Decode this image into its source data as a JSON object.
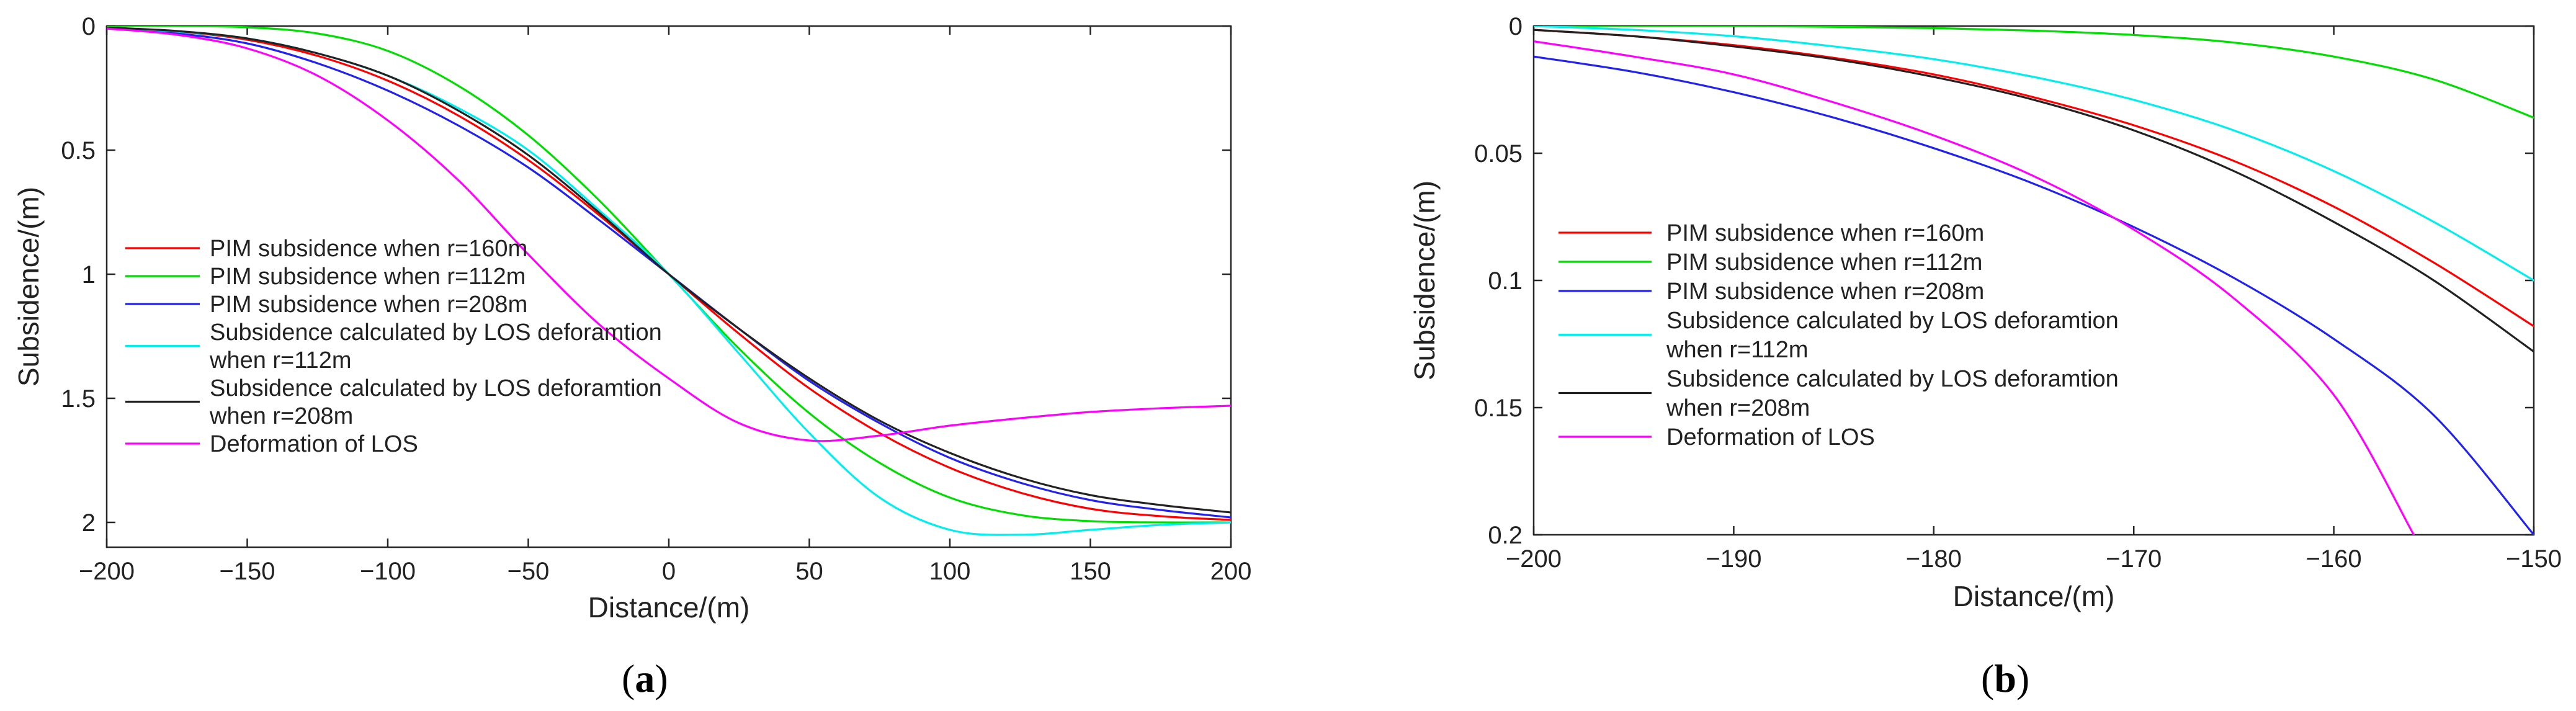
{
  "chart_data": [
    {
      "type": "line",
      "panel": "a",
      "panel_label": [
        "(",
        "a",
        ")"
      ],
      "xlabel": "Distance/(m)",
      "ylabel": "Subsidence/(m)",
      "xlim": [
        -200,
        200
      ],
      "ylim": [
        0,
        2.1
      ],
      "y_inverted": true,
      "xticks": [
        -200,
        -150,
        -100,
        -50,
        0,
        50,
        100,
        150,
        200
      ],
      "xtick_labels": [
        "−200",
        "−150",
        "−100",
        "−50",
        "0",
        "50",
        "100",
        "150",
        "200"
      ],
      "yticks": [
        0,
        0.5,
        1,
        1.5,
        2
      ],
      "ytick_labels": [
        "0",
        "0.5",
        "1",
        "1.5",
        "2"
      ],
      "legend_position": "middle-left",
      "series": [
        {
          "name": "PIM subsidence when r=160m",
          "legend_lines": [
            "PIM subsidence when r=160m"
          ],
          "color": "#ff0000",
          "x": [
            -200,
            -175,
            -150,
            -125,
            -100,
            -75,
            -50,
            -25,
            0,
            25,
            50,
            75,
            100,
            125,
            150,
            175,
            200
          ],
          "y": [
            0.006,
            0.022,
            0.055,
            0.12,
            0.22,
            0.36,
            0.54,
            0.76,
            1.0,
            1.24,
            1.46,
            1.64,
            1.78,
            1.88,
            1.945,
            1.975,
            1.99
          ]
        },
        {
          "name": "PIM subsidence when r=112m",
          "legend_lines": [
            "PIM subsidence when r=112m"
          ],
          "color": "#00dd00",
          "x": [
            -200,
            -175,
            -150,
            -125,
            -100,
            -75,
            -50,
            -25,
            0,
            25,
            50,
            75,
            100,
            125,
            150,
            175,
            200
          ],
          "y": [
            0.0,
            0.0,
            0.005,
            0.03,
            0.1,
            0.24,
            0.44,
            0.7,
            1.0,
            1.3,
            1.56,
            1.76,
            1.9,
            1.97,
            1.995,
            2.0,
            2.0
          ]
        },
        {
          "name": "PIM subsidence when r=208m",
          "legend_lines": [
            "PIM subsidence when r=208m"
          ],
          "color": "#2222ee",
          "x": [
            -200,
            -175,
            -150,
            -125,
            -100,
            -75,
            -50,
            -25,
            0,
            25,
            50,
            75,
            100,
            125,
            150,
            175,
            200
          ],
          "y": [
            0.01,
            0.03,
            0.07,
            0.15,
            0.26,
            0.4,
            0.57,
            0.78,
            1.0,
            1.22,
            1.43,
            1.6,
            1.74,
            1.84,
            1.91,
            1.95,
            1.98
          ]
        },
        {
          "name": "Subsidence calculated by LOS deforamtion when r=112m",
          "legend_lines": [
            "Subsidence calculated by LOS deforamtion",
            "when r=112m"
          ],
          "color": "#00eeee",
          "x": [
            -200,
            -175,
            -150,
            -125,
            -100,
            -75,
            -50,
            -25,
            0,
            25,
            50,
            75,
            100,
            125,
            150,
            175,
            200
          ],
          "y": [
            0.006,
            0.022,
            0.05,
            0.11,
            0.2,
            0.33,
            0.5,
            0.74,
            1.0,
            1.32,
            1.64,
            1.9,
            2.03,
            2.05,
            2.03,
            2.01,
            2.0
          ]
        },
        {
          "name": "Subsidence calculated by LOS deforamtion when r=208m",
          "legend_lines": [
            "Subsidence calculated by LOS deforamtion",
            "when r=208m"
          ],
          "color": "#222222",
          "x": [
            -200,
            -175,
            -150,
            -125,
            -100,
            -75,
            -50,
            -25,
            0,
            25,
            50,
            75,
            100,
            125,
            150,
            175,
            200
          ],
          "y": [
            0.006,
            0.02,
            0.05,
            0.11,
            0.2,
            0.34,
            0.52,
            0.75,
            1.0,
            1.22,
            1.42,
            1.59,
            1.72,
            1.82,
            1.89,
            1.93,
            1.96
          ]
        },
        {
          "name": "Deformation of LOS",
          "legend_lines": [
            "Deformation of LOS"
          ],
          "color": "#ff00ff",
          "x": [
            -200,
            -175,
            -150,
            -125,
            -100,
            -75,
            -50,
            -25,
            0,
            25,
            50,
            75,
            100,
            125,
            150,
            175,
            200
          ],
          "y": [
            0.01,
            0.035,
            0.09,
            0.2,
            0.38,
            0.62,
            0.92,
            1.2,
            1.42,
            1.6,
            1.67,
            1.65,
            1.61,
            1.58,
            1.555,
            1.54,
            1.53
          ]
        }
      ]
    },
    {
      "type": "line",
      "panel": "b",
      "panel_label": [
        "(",
        "b",
        ")"
      ],
      "xlabel": "Distance/(m)",
      "ylabel": "Subsidence/(m)",
      "xlim": [
        -200,
        -150
      ],
      "ylim": [
        0,
        0.2
      ],
      "y_inverted": true,
      "xticks": [
        -200,
        -190,
        -180,
        -170,
        -160,
        -150
      ],
      "xtick_labels": [
        "−200",
        "−190",
        "−180",
        "−170",
        "−160",
        "−150"
      ],
      "yticks": [
        0,
        0.05,
        0.1,
        0.15,
        0.2
      ],
      "ytick_labels": [
        "0",
        "0.05",
        "0.1",
        "0.15",
        "0.2"
      ],
      "legend_position": "middle-left",
      "series": [
        {
          "name": "PIM subsidence when r=160m",
          "legend_lines": [
            "PIM subsidence when r=160m"
          ],
          "color": "#ff0000",
          "x": [
            -200,
            -195,
            -190,
            -185,
            -180,
            -175,
            -170,
            -165,
            -160,
            -155,
            -150
          ],
          "y": [
            0.0015,
            0.004,
            0.0075,
            0.0125,
            0.019,
            0.028,
            0.039,
            0.053,
            0.071,
            0.093,
            0.118
          ]
        },
        {
          "name": "PIM subsidence when r=112m",
          "legend_lines": [
            "PIM subsidence when r=112m"
          ],
          "color": "#00dd00",
          "x": [
            -200,
            -195,
            -190,
            -185,
            -180,
            -175,
            -170,
            -165,
            -160,
            -155,
            -150
          ],
          "y": [
            0.0,
            0.0,
            0.0,
            0.0003,
            0.0008,
            0.0018,
            0.0035,
            0.0065,
            0.012,
            0.021,
            0.036
          ]
        },
        {
          "name": "PIM subsidence when r=208m",
          "legend_lines": [
            "PIM subsidence when r=208m"
          ],
          "color": "#2222ee",
          "x": [
            -200,
            -195,
            -190,
            -185,
            -180,
            -175,
            -170,
            -165,
            -160,
            -155,
            -150
          ],
          "y": [
            0.012,
            0.018,
            0.026,
            0.036,
            0.048,
            0.062,
            0.079,
            0.099,
            0.123,
            0.153,
            0.2
          ]
        },
        {
          "name": "Subsidence calculated by LOS deforamtion when r=112m",
          "legend_lines": [
            "Subsidence calculated by LOS deforamtion",
            "when r=112m"
          ],
          "color": "#00eeee",
          "x": [
            -200,
            -195,
            -190,
            -185,
            -180,
            -175,
            -170,
            -165,
            -160,
            -155,
            -150
          ],
          "y": [
            0.0,
            0.0015,
            0.004,
            0.008,
            0.013,
            0.02,
            0.029,
            0.041,
            0.057,
            0.077,
            0.1
          ]
        },
        {
          "name": "Subsidence calculated by LOS deforamtion when r=208m",
          "legend_lines": [
            "Subsidence calculated by LOS deforamtion",
            "when r=208m"
          ],
          "color": "#222222",
          "x": [
            -200,
            -195,
            -190,
            -185,
            -180,
            -175,
            -170,
            -165,
            -160,
            -155,
            -150
          ],
          "y": [
            0.0015,
            0.004,
            0.008,
            0.013,
            0.02,
            0.029,
            0.041,
            0.057,
            0.077,
            0.1,
            0.128
          ]
        },
        {
          "name": "Deformation of LOS",
          "legend_lines": [
            "Deformation of LOS"
          ],
          "color": "#ff00ff",
          "x": [
            -200,
            -195,
            -190,
            -185,
            -180,
            -175,
            -170,
            -165,
            -160,
            -156
          ],
          "y": [
            0.006,
            0.012,
            0.019,
            0.03,
            0.043,
            0.059,
            0.08,
            0.107,
            0.145,
            0.2
          ]
        }
      ]
    }
  ]
}
